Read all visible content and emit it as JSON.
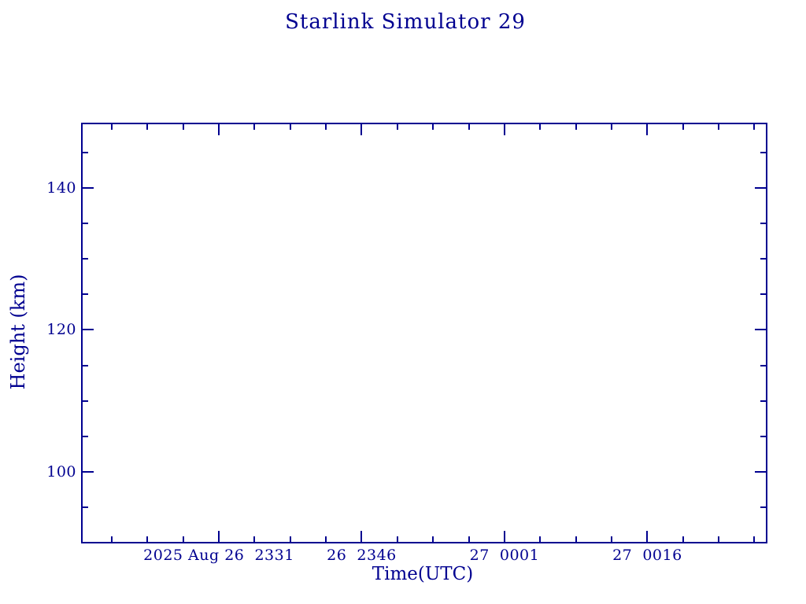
{
  "page": {
    "background": "#ffffff",
    "accent_color": "#000090"
  },
  "chart_data": {
    "type": "line",
    "title": "Starlink Simulator 29",
    "xlabel": "Time(UTC)",
    "ylabel": "Height (km)",
    "series": [],
    "notes": "empty axes frame, no data points plotted",
    "grid": "off",
    "x_axis": {
      "unit": "minutes relative to 2025 Aug 26 23:31 UTC",
      "range": [
        -14.3,
        57.45
      ],
      "major_step": 15,
      "minor_step": 3.75,
      "major_ticks": [
        {
          "t": 0,
          "label": "2025 Aug 26  2331"
        },
        {
          "t": 15,
          "label": "26  2346"
        },
        {
          "t": 30,
          "label": "27  0001"
        },
        {
          "t": 45,
          "label": "27  0016"
        }
      ]
    },
    "y_axis": {
      "unit": "km",
      "range": [
        90.1,
        149.0
      ],
      "major_step": 20,
      "minor_step": 5,
      "major_ticks": [
        {
          "v": 100,
          "label": "100"
        },
        {
          "v": 120,
          "label": "120"
        },
        {
          "v": 140,
          "label": "140"
        }
      ]
    },
    "tick_style": {
      "major_len": 14,
      "minor_len": 7,
      "thickness": 2,
      "direction": "inward, mirrored on all four sides"
    }
  }
}
